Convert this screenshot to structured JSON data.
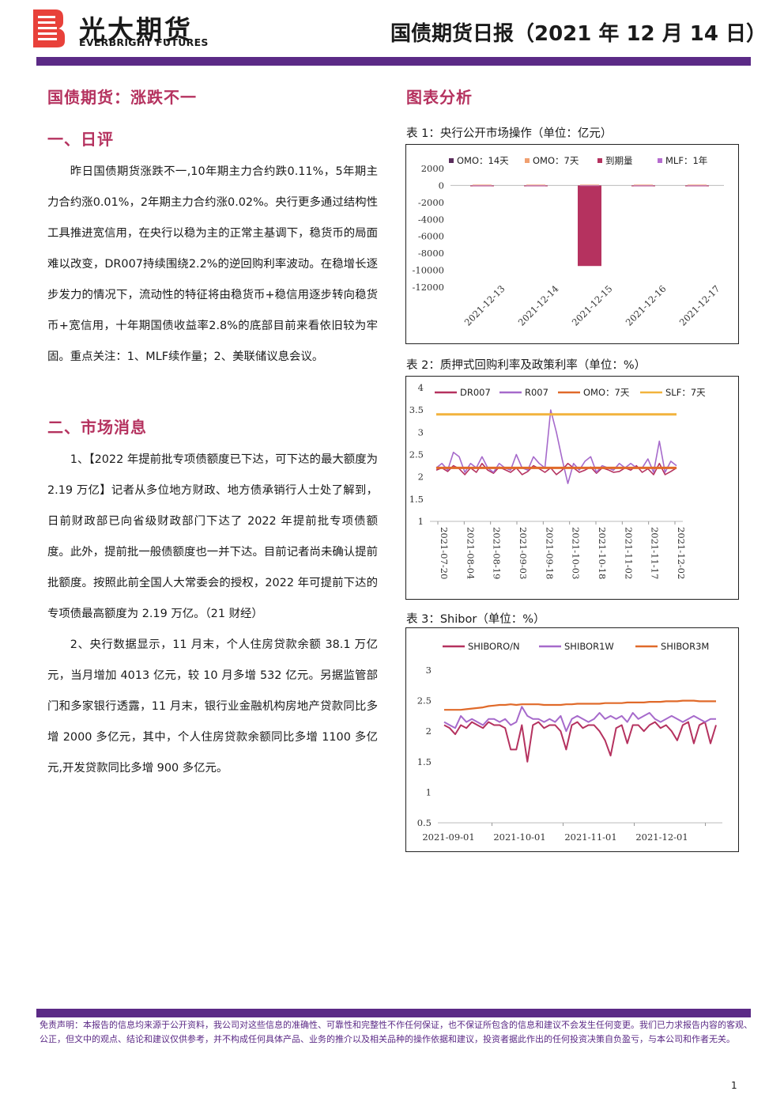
{
  "header": {
    "brand_cn": "光大期货",
    "brand_en": "EVERBRIGHT FUTURES",
    "report_title": "国债期货日报（2021 年 12 月 14 日）"
  },
  "left": {
    "headline": "国债期货：涨跌不一",
    "section1_title": "一、日评",
    "section1_body": "昨日国债期货涨跌不一,10年期主力合约跌0.11%，5年期主力合约涨0.01%，2年期主力合约涨0.02%。央行更多通过结构性工具推进宽信用，在央行以稳为主的正常主基调下，稳货币的局面难以改变，DR007持续围绕2.2%的逆回购利率波动。在稳增长逐步发力的情况下，流动性的特征将由稳货币+稳信用逐步转向稳货币+宽信用，十年期国债收益率2.8%的底部目前来看依旧较为牢固。重点关注：1、MLF续作量；2、美联储议息会议。",
    "section2_title": "二、市场消息",
    "news1": "1、【2022 年提前批专项债额度已下达，可下达的最大额度为 2.19 万亿】记者从多位地方财政、地方债承销行人士处了解到，日前财政部已向省级财政部门下达了 2022 年提前批专项债额度。此外，提前批一般债额度也一并下达。目前记者尚未确认提前批额度。按照此前全国人大常委会的授权，2022 年可提前下达的专项债最高额度为 2.19 万亿。（21 财经）",
    "news2": "2、央行数据显示，11 月末，个人住房贷款余额 38.1 万亿元，当月增加 4013 亿元，较 10 月多增 532 亿元。另据监管部门和多家银行透露，11 月末，银行业金融机构房地产贷款同比多增 2000 多亿元，其中，个人住房贷款余额同比多增 1100 多亿元,开发贷款同比多增 900 多亿元。"
  },
  "right": {
    "title": "图表分析",
    "fig1_caption": "表 1：央行公开市场操作（单位：亿元）",
    "fig2_caption": "表 2：质押式回购利率及政策利率（单位：%）",
    "fig3_caption": "表 3：Shibor（单位：%）"
  },
  "footer": {
    "disclaimer": "免责声明：本报告的信息均来源于公开资料，我公司对这些信息的准确性、可靠性和完整性不作任何保证，也不保证所包含的信息和建议不会发生任何变更。我们已力求报告内容的客观、公正，但文中的观点、结论和建议仅供参考，并不构成任何具体产品、业务的推介以及相关品种的操作依据和建议，投资者据此作出的任何投资决策自负盈亏，与本公司和作者无关。",
    "page_number": "1"
  },
  "colors": {
    "brand_purple": "#5b2a86",
    "heading_rose": "#b5325f",
    "omo14": "#5a2d5c",
    "omo7": "#f0a070",
    "maturity": "#b5325f",
    "mlf": "#b56ccf",
    "dr007": "#b5325f",
    "r007": "#a66acb",
    "omo7_line": "#e06a2a",
    "slf": "#f2b33d",
    "shibor_on": "#b5325f",
    "shibor_1w": "#a66acb",
    "shibor_3m": "#e06a2a"
  },
  "chart_data": [
    {
      "type": "bar",
      "categories": [
        "2021-12-13",
        "2021-12-14",
        "2021-12-15",
        "2021-12-16",
        "2021-12-17"
      ],
      "y_ticks": [
        "2000",
        "0",
        "-2000",
        "-4000",
        "-6000",
        "-8000",
        "-10000",
        "-12000"
      ],
      "ylim": [
        -12000,
        2000
      ],
      "legend_position": "top",
      "series": [
        {
          "name": "OMO：14天",
          "values": [
            0,
            0,
            0,
            0,
            0
          ]
        },
        {
          "name": "OMO：7天",
          "values": [
            100,
            100,
            100,
            100,
            100
          ]
        },
        {
          "name": "到期量",
          "values": [
            -100,
            -100,
            -9500,
            -100,
            -100
          ]
        },
        {
          "name": "MLF：1年",
          "values": [
            0,
            0,
            0,
            0,
            0
          ]
        }
      ]
    },
    {
      "type": "line",
      "x_ticks": [
        "2021-07-20",
        "2021-08-04",
        "2021-08-19",
        "2021-09-03",
        "2021-09-18",
        "2021-10-03",
        "2021-10-18",
        "2021-11-02",
        "2021-11-17",
        "2021-12-02"
      ],
      "y_ticks": [
        "4",
        "3.5",
        "3",
        "2.5",
        "2",
        "1.5",
        "1"
      ],
      "ylim": [
        1,
        4
      ],
      "legend_position": "top",
      "series": [
        {
          "name": "DR007",
          "values": [
            2.15,
            2.2,
            2.12,
            2.25,
            2.18,
            2.05,
            2.2,
            2.1,
            2.3,
            2.15,
            2.08,
            2.22,
            2.16,
            2.1,
            2.2,
            2.05,
            2.12,
            2.25,
            2.18,
            2.1,
            2.2,
            2.05,
            2.15,
            2.3,
            2.2,
            2.1,
            2.15,
            2.22,
            2.08,
            2.2,
            2.16,
            2.1,
            2.12,
            2.2,
            2.15,
            2.25,
            2.1,
            2.18,
            2.05,
            2.3,
            2.05,
            2.12,
            2.2
          ]
        },
        {
          "name": "R007",
          "values": [
            2.2,
            2.3,
            2.15,
            2.55,
            2.45,
            2.1,
            2.3,
            2.2,
            2.45,
            2.2,
            2.1,
            2.3,
            2.2,
            2.15,
            2.5,
            2.2,
            2.15,
            2.45,
            2.3,
            2.2,
            3.5,
            3.0,
            2.4,
            1.85,
            2.3,
            2.15,
            2.35,
            2.45,
            2.1,
            2.25,
            2.2,
            2.15,
            2.3,
            2.2,
            2.3,
            2.2,
            2.2,
            2.4,
            2.1,
            2.8,
            2.1,
            2.35,
            2.25
          ]
        },
        {
          "name": "OMO：7天",
          "values": [
            2.2,
            2.2
          ]
        },
        {
          "name": "SLF：7天",
          "values": [
            3.4,
            3.4
          ]
        }
      ]
    },
    {
      "type": "line",
      "x_ticks": [
        "2021-09-01",
        "2021-10-01",
        "2021-11-01",
        "2021-12-01"
      ],
      "y_ticks": [
        "3",
        "2.5",
        "2",
        "1.5",
        "1",
        "0.5"
      ],
      "ylim": [
        0.5,
        3
      ],
      "legend_position": "top",
      "series": [
        {
          "name": "SHIBORO/N",
          "values": [
            2.1,
            2.05,
            1.95,
            2.1,
            2.05,
            2.15,
            2.1,
            2.05,
            2.15,
            2.1,
            2.1,
            2.05,
            1.7,
            1.7,
            2.1,
            1.5,
            2.1,
            2.15,
            2.05,
            2.1,
            2.1,
            2.0,
            1.7,
            2.1,
            2.15,
            2.05,
            2.1,
            2.1,
            2.0,
            1.85,
            1.6,
            2.05,
            2.1,
            1.8,
            2.1,
            2.1,
            2.0,
            2.1,
            2.15,
            2.05,
            2.1,
            2.0,
            1.85,
            2.1,
            2.15,
            1.8,
            2.1,
            2.15,
            1.8,
            2.1
          ]
        },
        {
          "name": "SHIBOR1W",
          "values": [
            2.15,
            2.1,
            2.05,
            2.25,
            2.15,
            2.2,
            2.15,
            2.1,
            2.2,
            2.2,
            2.15,
            2.2,
            2.1,
            2.15,
            2.4,
            2.25,
            2.2,
            2.2,
            2.15,
            2.2,
            2.15,
            2.25,
            2.0,
            2.2,
            2.25,
            2.2,
            2.15,
            2.2,
            2.3,
            2.2,
            2.25,
            2.2,
            2.25,
            2.15,
            2.3,
            2.2,
            2.25,
            2.3,
            2.2,
            2.15,
            2.2,
            2.25,
            2.2,
            2.15,
            2.2,
            2.25,
            2.2,
            2.15,
            2.2,
            2.2
          ]
        },
        {
          "name": "SHIBOR3M",
          "values": [
            2.35,
            2.35,
            2.35,
            2.35,
            2.36,
            2.37,
            2.38,
            2.39,
            2.41,
            2.42,
            2.43,
            2.43,
            2.44,
            2.43,
            2.44,
            2.44,
            2.44,
            2.44,
            2.43,
            2.43,
            2.43,
            2.43,
            2.44,
            2.44,
            2.45,
            2.45,
            2.45,
            2.45,
            2.45,
            2.46,
            2.46,
            2.46,
            2.46,
            2.47,
            2.47,
            2.47,
            2.47,
            2.48,
            2.48,
            2.48,
            2.49,
            2.49,
            2.49,
            2.5,
            2.5,
            2.5,
            2.49,
            2.49,
            2.49,
            2.49
          ]
        }
      ]
    }
  ]
}
